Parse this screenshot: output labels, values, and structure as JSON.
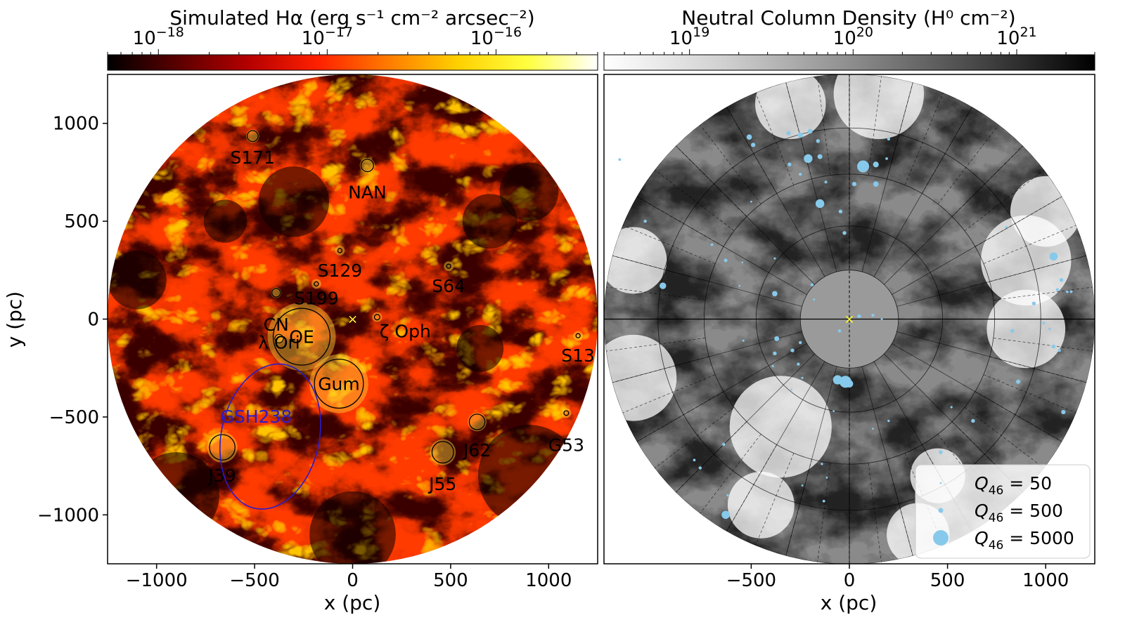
{
  "left_panel": {
    "colorbar_label": "Simulated Hα (erg s⁻¹ cm⁻² arcsec⁻²)",
    "colorbar_ticks": [
      {
        "base": "10",
        "exp": "−18",
        "value": 1e-18
      },
      {
        "base": "10",
        "exp": "−17",
        "value": 1e-17
      },
      {
        "base": "10",
        "exp": "−16",
        "value": 1e-16
      }
    ],
    "colorbar_range": [
      5e-19,
      4e-16
    ],
    "colormap": [
      "#000000",
      "#5a0000",
      "#b40000",
      "#ff2000",
      "#ff7a00",
      "#ffd000",
      "#ffff40",
      "#ffffff"
    ],
    "xlabel": "x (pc)",
    "ylabel": "y (pc)",
    "xticks": [
      "−1000",
      "−500",
      "0",
      "500",
      "1000"
    ],
    "yticks": [
      "1000",
      "500",
      "0",
      "−500",
      "−1000"
    ],
    "xlim": [
      -1250,
      1250
    ],
    "ylim": [
      -1250,
      1250
    ],
    "disk_radius_pc": 1250,
    "source_marker": "×",
    "source_marker_color": "#ffff33",
    "ring_color": "#000000",
    "gsh_color": "#2a1cc8"
  },
  "right_panel": {
    "colorbar_label": "Neutral Column Density (H⁰ cm⁻²)",
    "colorbar_ticks": [
      {
        "base": "10",
        "exp": "19",
        "value": 1e+19
      },
      {
        "base": "10",
        "exp": "20",
        "value": 1e+20
      },
      {
        "base": "10",
        "exp": "21",
        "value": 1e+21
      }
    ],
    "colorbar_range": [
      3e+18,
      3e+21
    ],
    "colormap": [
      "#ffffff",
      "#cfcfcf",
      "#8e8e8e",
      "#4a4a4a",
      "#000000"
    ],
    "xlabel": "x (pc)",
    "xticks": [
      "−500",
      "0",
      "500",
      "1000"
    ],
    "xlim": [
      -1250,
      1250
    ],
    "ylim": [
      -1250,
      1250
    ],
    "source_color": "#87c9ea",
    "legend": [
      {
        "prefix": "Q",
        "sub": "46",
        "suffix": " = 50",
        "q": 50
      },
      {
        "prefix": "Q",
        "sub": "46",
        "suffix": " = 500",
        "q": 500
      },
      {
        "prefix": "Q",
        "sub": "46",
        "suffix": " = 5000",
        "q": 5000
      }
    ],
    "legend_position": "lower-right"
  },
  "chart_data": [
    {
      "type": "heatmap",
      "title": "",
      "colorbar_label": "Simulated Hα (erg s⁻¹ cm⁻² arcsec⁻²)",
      "xlabel": "x (pc)",
      "ylabel": "y (pc)",
      "xlim": [
        -1250,
        1250
      ],
      "ylim": [
        -1250,
        1250
      ],
      "regions": [
        {
          "name": "S171",
          "x": -510,
          "y": 935,
          "r": 28
        },
        {
          "name": "NAN",
          "x": 75,
          "y": 785,
          "r": 32
        },
        {
          "name": "S129",
          "x": -65,
          "y": 350,
          "r": 8
        },
        {
          "name": "S64",
          "x": 490,
          "y": 270,
          "r": 8
        },
        {
          "name": "CN",
          "x": -390,
          "y": 135,
          "r": 22
        },
        {
          "name": "S199",
          "x": -185,
          "y": 180,
          "r": 10
        },
        {
          "name": "ζ Oph",
          "x": 125,
          "y": 10,
          "r": 14
        },
        {
          "name": "OE",
          "x": -260,
          "y": -90,
          "r": 145
        },
        {
          "name": "λ Ori",
          "x": -375,
          "y": -100,
          "r": 22
        },
        {
          "name": "Gum",
          "x": -70,
          "y": -330,
          "r": 125
        },
        {
          "name": "S13",
          "x": 1150,
          "y": -85,
          "r": 10
        },
        {
          "name": "G53",
          "x": 1090,
          "y": -480,
          "r": 12
        },
        {
          "name": "J62",
          "x": 635,
          "y": -525,
          "r": 40
        },
        {
          "name": "J55",
          "x": 460,
          "y": -680,
          "r": 55
        },
        {
          "name": "J39",
          "x": -665,
          "y": -655,
          "r": 65
        }
      ],
      "gsh238": {
        "name": "GSH238",
        "cx": -420,
        "cy": -600,
        "rx": 250,
        "ry": 375
      },
      "sun": {
        "x": 0,
        "y": 0
      }
    },
    {
      "type": "heatmap",
      "title": "",
      "colorbar_label": "Neutral Column Density (H⁰ cm⁻²)",
      "xlabel": "x (pc)",
      "xlim": [
        -1250,
        1250
      ],
      "ylim": [
        -1250,
        1250
      ],
      "grid_rings_pc": [
        250,
        475,
        740,
        975,
        1250
      ],
      "sources": [
        {
          "x": -510,
          "y": 930,
          "q": 600
        },
        {
          "x": -490,
          "y": 890,
          "q": 400
        },
        {
          "x": -1170,
          "y": 815,
          "q": 150
        },
        {
          "x": -310,
          "y": 950,
          "q": 400
        },
        {
          "x": -250,
          "y": 940,
          "q": 600
        },
        {
          "x": -200,
          "y": 960,
          "q": 500
        },
        {
          "x": -160,
          "y": 910,
          "q": 300
        },
        {
          "x": -210,
          "y": 820,
          "q": 1600
        },
        {
          "x": -150,
          "y": 830,
          "q": 500
        },
        {
          "x": -305,
          "y": 790,
          "q": 300
        },
        {
          "x": -250,
          "y": 740,
          "q": 200
        },
        {
          "x": -120,
          "y": 700,
          "q": 150
        },
        {
          "x": 70,
          "y": 780,
          "q": 3000
        },
        {
          "x": 135,
          "y": 790,
          "q": 700
        },
        {
          "x": 200,
          "y": 920,
          "q": 200
        },
        {
          "x": 25,
          "y": 690,
          "q": 400
        },
        {
          "x": 135,
          "y": 690,
          "q": 600
        },
        {
          "x": 190,
          "y": 820,
          "q": 150
        },
        {
          "x": -150,
          "y": 590,
          "q": 1600
        },
        {
          "x": -45,
          "y": 550,
          "q": 300
        },
        {
          "x": -1040,
          "y": 500,
          "q": 200
        },
        {
          "x": -25,
          "y": 440,
          "q": 300
        },
        {
          "x": -700,
          "y": 380,
          "q": 150
        },
        {
          "x": -630,
          "y": 300,
          "q": 250
        },
        {
          "x": -380,
          "y": 310,
          "q": 100
        },
        {
          "x": -545,
          "y": 290,
          "q": 50
        },
        {
          "x": -950,
          "y": 170,
          "q": 900
        },
        {
          "x": -560,
          "y": 170,
          "q": 80
        },
        {
          "x": -380,
          "y": 130,
          "q": 600
        },
        {
          "x": -190,
          "y": 175,
          "q": 200
        },
        {
          "x": -180,
          "y": 100,
          "q": 100
        },
        {
          "x": 50,
          "y": 15,
          "q": 300
        },
        {
          "x": 120,
          "y": 20,
          "q": 200
        },
        {
          "x": 165,
          "y": 0,
          "q": 100
        },
        {
          "x": -50,
          "y": -60,
          "q": 200
        },
        {
          "x": -370,
          "y": -100,
          "q": 500
        },
        {
          "x": -290,
          "y": -160,
          "q": 300
        },
        {
          "x": -250,
          "y": -120,
          "q": 200
        },
        {
          "x": -260,
          "y": -230,
          "q": 200
        },
        {
          "x": -390,
          "y": -240,
          "q": 100
        },
        {
          "x": -380,
          "y": -175,
          "q": 300
        },
        {
          "x": -20,
          "y": -320,
          "q": 3000
        },
        {
          "x": -60,
          "y": -310,
          "q": 1800
        },
        {
          "x": 0,
          "y": -330,
          "q": 1200
        },
        {
          "x": -240,
          "y": -300,
          "q": 100
        },
        {
          "x": -295,
          "y": -360,
          "q": 80
        },
        {
          "x": 800,
          "y": 470,
          "q": 100
        },
        {
          "x": 1040,
          "y": 320,
          "q": 1400
        },
        {
          "x": 1080,
          "y": 200,
          "q": 300
        },
        {
          "x": 1060,
          "y": 150,
          "q": 200
        },
        {
          "x": 1110,
          "y": 140,
          "q": 150
        },
        {
          "x": 1130,
          "y": 140,
          "q": 150
        },
        {
          "x": 940,
          "y": 80,
          "q": 300
        },
        {
          "x": 830,
          "y": -60,
          "q": 300
        },
        {
          "x": 1040,
          "y": -140,
          "q": 300
        },
        {
          "x": 1070,
          "y": -160,
          "q": 200
        },
        {
          "x": 1020,
          "y": -50,
          "q": 120
        },
        {
          "x": 990,
          "y": -20,
          "q": 150
        },
        {
          "x": 860,
          "y": -320,
          "q": 400
        },
        {
          "x": 1090,
          "y": -475,
          "q": 400
        },
        {
          "x": 520,
          "y": -450,
          "q": 100
        },
        {
          "x": 630,
          "y": -520,
          "q": 300
        },
        {
          "x": 465,
          "y": -680,
          "q": 300
        },
        {
          "x": 540,
          "y": -820,
          "q": 100
        },
        {
          "x": 200,
          "y": -520,
          "q": 120
        },
        {
          "x": -640,
          "y": -640,
          "q": 200
        },
        {
          "x": -760,
          "y": -760,
          "q": 200
        },
        {
          "x": -790,
          "y": -720,
          "q": 150
        },
        {
          "x": -620,
          "y": -900,
          "q": 120
        },
        {
          "x": -630,
          "y": -1000,
          "q": 1400
        },
        {
          "x": -130,
          "y": -930,
          "q": 150
        },
        {
          "x": -240,
          "y": -850,
          "q": 80
        },
        {
          "x": -140,
          "y": -740,
          "q": 120
        },
        {
          "x": -115,
          "y": -810,
          "q": 80
        },
        {
          "x": 120,
          "y": -560,
          "q": 80
        },
        {
          "x": -80,
          "y": -470,
          "q": 80
        },
        {
          "x": -540,
          "y": -110,
          "q": 100
        },
        {
          "x": -500,
          "y": 600,
          "q": 80
        }
      ],
      "sun": {
        "x": 0,
        "y": 0
      }
    }
  ]
}
